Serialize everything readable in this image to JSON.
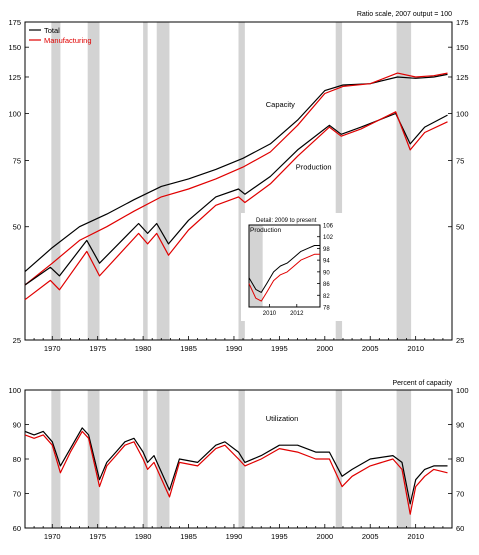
{
  "chart_data": [
    {
      "type": "line",
      "panel": "top",
      "scale": "log",
      "note": "Ratio scale, 2007 output = 100",
      "legend": [
        {
          "label": "Total",
          "color": "#000000"
        },
        {
          "label": "Manufacturing",
          "color": "#e00000"
        }
      ],
      "legend_position": "top-left",
      "annotations": {
        "capacity": "Capacity",
        "production": "Production"
      },
      "ylim": [
        25,
        175
      ],
      "yticks": [
        25,
        50,
        75,
        100,
        125,
        150,
        175
      ],
      "xlim": [
        1967,
        2014
      ],
      "xticks": [
        1970,
        1975,
        1980,
        1985,
        1990,
        1995,
        2000,
        2005,
        2010
      ],
      "recessions": [
        [
          1969.9,
          1970.9
        ],
        [
          1973.9,
          1975.2
        ],
        [
          1980.0,
          1980.5
        ],
        [
          1981.5,
          1982.9
        ],
        [
          1990.5,
          1991.2
        ],
        [
          2001.2,
          2001.9
        ],
        [
          2007.9,
          2009.5
        ]
      ],
      "series": [
        {
          "name": "Total",
          "metric": "Capacity",
          "color": "#000000",
          "x": [
            1967,
            1970,
            1973,
            1976,
            1979,
            1982,
            1985,
            1988,
            1991,
            1994,
            1997,
            2000,
            2002,
            2005,
            2008,
            2010,
            2012,
            2013.5
          ],
          "y": [
            38,
            44,
            50,
            54,
            59,
            64,
            67,
            71,
            76,
            83,
            96,
            115,
            119,
            120,
            125,
            124,
            125,
            127
          ]
        },
        {
          "name": "Manufacturing",
          "metric": "Capacity",
          "color": "#e00000",
          "x": [
            1967,
            1970,
            1973,
            1976,
            1979,
            1982,
            1985,
            1988,
            1991,
            1994,
            1997,
            2000,
            2002,
            2005,
            2008,
            2010,
            2012,
            2013.5
          ],
          "y": [
            35,
            40,
            46,
            50,
            55,
            60,
            63,
            67,
            72,
            79,
            93,
            113,
            118,
            120,
            128,
            125,
            126,
            128
          ]
        },
        {
          "name": "Total",
          "metric": "Production",
          "color": "#000000",
          "x": [
            1967,
            1969.8,
            1970.8,
            1973.8,
            1975.2,
            1979.5,
            1980.5,
            1981.5,
            1982.8,
            1985,
            1988,
            1990.5,
            1991.2,
            1994,
            1997,
            2000.5,
            2001.8,
            2004,
            2007.8,
            2009.4,
            2011,
            2013.5
          ],
          "y": [
            35,
            39,
            37,
            46,
            40,
            51,
            48,
            51,
            45,
            52,
            60,
            63,
            61,
            68,
            80,
            93,
            88,
            92,
            100,
            83,
            92,
            99
          ]
        },
        {
          "name": "Manufacturing",
          "metric": "Production",
          "color": "#e00000",
          "x": [
            1967,
            1969.8,
            1970.8,
            1973.8,
            1975.2,
            1979.5,
            1980.5,
            1981.5,
            1982.8,
            1985,
            1988,
            1990.5,
            1991.2,
            1994,
            1997,
            2000.5,
            2001.8,
            2004,
            2007.8,
            2009.4,
            2011,
            2013.5
          ],
          "y": [
            32,
            36,
            34,
            43,
            37,
            48,
            45,
            48,
            42,
            49,
            57,
            60,
            58,
            65,
            77,
            92,
            87,
            91,
            101,
            80,
            89,
            95
          ]
        }
      ],
      "inset": {
        "title": "Detail: 2009 to present",
        "label": "Production",
        "yticks": [
          78,
          82,
          86,
          90,
          94,
          98,
          102,
          106
        ],
        "xticks": [
          2010,
          2012
        ],
        "xlim": [
          2008.5,
          2013.7
        ],
        "ylim": [
          78,
          106
        ],
        "recession": [
          2008.5,
          2009.5
        ],
        "series": [
          {
            "name": "Total",
            "color": "#000000",
            "x": [
              2008.5,
              2009.0,
              2009.4,
              2009.8,
              2010.3,
              2010.8,
              2011.3,
              2011.8,
              2012.3,
              2012.8,
              2013.3,
              2013.7
            ],
            "y": [
              88,
              84,
              83,
              86,
              90,
              92,
              93,
              95,
              97,
              98,
              99,
              99
            ]
          },
          {
            "name": "Manufacturing",
            "color": "#e00000",
            "x": [
              2008.5,
              2009.0,
              2009.4,
              2009.8,
              2010.3,
              2010.8,
              2011.3,
              2011.8,
              2012.3,
              2012.8,
              2013.3,
              2013.7
            ],
            "y": [
              86,
              81,
              80,
              83,
              87,
              89,
              90,
              92,
              94,
              95,
              96,
              96
            ]
          }
        ]
      }
    },
    {
      "type": "line",
      "panel": "bottom",
      "note": "Percent of capacity",
      "annotation": "Utilization",
      "ylim": [
        60,
        100
      ],
      "yticks": [
        60,
        70,
        80,
        90,
        100
      ],
      "xlim": [
        1967,
        2014
      ],
      "xticks": [
        1970,
        1975,
        1980,
        1985,
        1990,
        1995,
        2000,
        2005,
        2010
      ],
      "recessions": [
        [
          1969.9,
          1970.9
        ],
        [
          1973.9,
          1975.2
        ],
        [
          1980.0,
          1980.5
        ],
        [
          1981.5,
          1982.9
        ],
        [
          1990.5,
          1991.2
        ],
        [
          2001.2,
          2001.9
        ],
        [
          2007.9,
          2009.5
        ]
      ],
      "series": [
        {
          "name": "Total",
          "color": "#000000",
          "x": [
            1967,
            1968,
            1969,
            1970,
            1970.9,
            1972,
            1973.3,
            1974,
            1975.2,
            1976,
            1977,
            1978,
            1979,
            1980,
            1980.5,
            1981.2,
            1982.9,
            1984,
            1986,
            1988,
            1989,
            1990.5,
            1991.2,
            1993,
            1995,
            1997,
            1999,
            2000.5,
            2001.9,
            2003,
            2005,
            2007.5,
            2008.5,
            2009.4,
            2010,
            2011,
            2012,
            2013.5
          ],
          "y": [
            88,
            87,
            88,
            85,
            78,
            83,
            89,
            87,
            74,
            79,
            82,
            85,
            86,
            82,
            79,
            81,
            71,
            80,
            79,
            84,
            85,
            82,
            79,
            81,
            84,
            84,
            82,
            82,
            75,
            77,
            80,
            81,
            79,
            67,
            74,
            77,
            78,
            78
          ]
        },
        {
          "name": "Manufacturing",
          "color": "#e00000",
          "x": [
            1967,
            1968,
            1969,
            1970,
            1970.9,
            1972,
            1973.3,
            1974,
            1975.2,
            1976,
            1977,
            1978,
            1979,
            1980,
            1980.5,
            1981.2,
            1982.9,
            1984,
            1986,
            1988,
            1989,
            1990.5,
            1991.2,
            1993,
            1995,
            1997,
            1999,
            2000.5,
            2001.9,
            2003,
            2005,
            2007.5,
            2008.5,
            2009.4,
            2010,
            2011,
            2012,
            2013.5
          ],
          "y": [
            87,
            86,
            87,
            84,
            76,
            82,
            88,
            86,
            72,
            78,
            81,
            84,
            85,
            80,
            77,
            79,
            69,
            79,
            78,
            83,
            84,
            80,
            78,
            80,
            83,
            82,
            80,
            80,
            72,
            75,
            78,
            80,
            77,
            64,
            72,
            75,
            77,
            76
          ]
        }
      ]
    }
  ]
}
